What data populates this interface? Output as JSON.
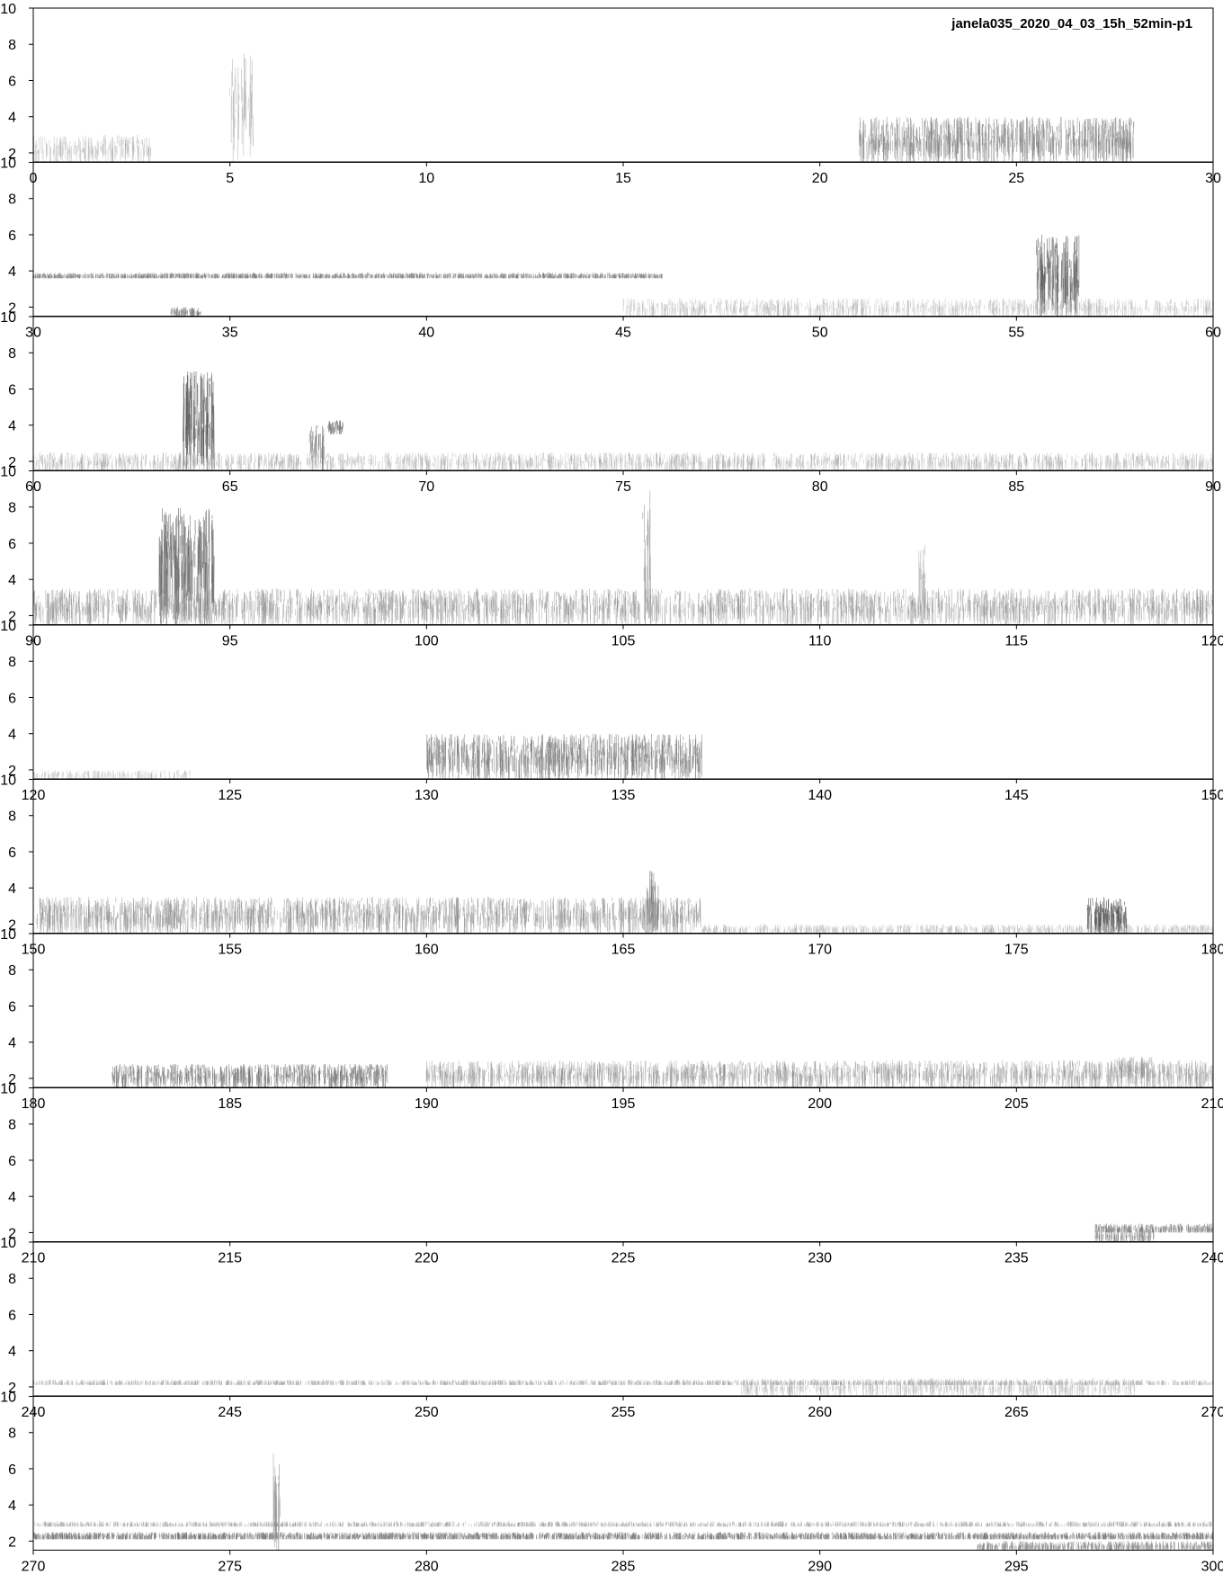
{
  "title": "janela035_2020_04_03_15h_52min-p1",
  "chart_data": {
    "type": "heatmap",
    "subtype": "spectrogram",
    "title": "janela035_2020_04_03_15h_52min-p1",
    "xlabel": "",
    "ylabel": "",
    "colormap": "grayscale (white = low, dark gray = high)",
    "panel_count": 10,
    "panels": [
      {
        "xlim": [
          0,
          30
        ],
        "ylim": [
          1.5,
          10
        ],
        "x_ticks": [
          "0",
          "5",
          "10",
          "15",
          "20",
          "25",
          "30"
        ],
        "y_ticks": [
          "2",
          "4",
          "6",
          "8",
          "10"
        ],
        "events": [
          {
            "t0": 0,
            "t1": 3,
            "f0": 1.5,
            "f1": 3,
            "intensity": 0.25
          },
          {
            "t0": 5,
            "t1": 5.6,
            "f0": 1.5,
            "f1": 7.5,
            "intensity": 0.3
          },
          {
            "t0": 21,
            "t1": 28,
            "f0": 1.5,
            "f1": 4,
            "intensity": 0.55
          }
        ]
      },
      {
        "xlim": [
          30,
          60
        ],
        "ylim": [
          1.5,
          10
        ],
        "x_ticks": [
          "30",
          "35",
          "40",
          "45",
          "50",
          "55",
          "60"
        ],
        "y_ticks": [
          "2",
          "4",
          "6",
          "8",
          "10"
        ],
        "events": [
          {
            "t0": 30,
            "t1": 46,
            "f0": 3.6,
            "f1": 3.9,
            "intensity": 0.55
          },
          {
            "t0": 33.5,
            "t1": 34.3,
            "f0": 1.5,
            "f1": 2,
            "intensity": 0.6
          },
          {
            "t0": 55.5,
            "t1": 56.6,
            "f0": 1.5,
            "f1": 6,
            "intensity": 0.8
          },
          {
            "t0": 45,
            "t1": 60,
            "f0": 1.5,
            "f1": 2.5,
            "intensity": 0.2
          }
        ]
      },
      {
        "xlim": [
          60,
          90
        ],
        "ylim": [
          1.5,
          10
        ],
        "x_ticks": [
          "60",
          "65",
          "70",
          "75",
          "80",
          "85",
          "90"
        ],
        "y_ticks": [
          "2",
          "4",
          "6",
          "8",
          "10"
        ],
        "events": [
          {
            "t0": 63.8,
            "t1": 64.6,
            "f0": 1.5,
            "f1": 7,
            "intensity": 0.85
          },
          {
            "t0": 67,
            "t1": 67.4,
            "f0": 1.5,
            "f1": 4,
            "intensity": 0.6
          },
          {
            "t0": 67.5,
            "t1": 67.9,
            "f0": 3.5,
            "f1": 4.3,
            "intensity": 0.7
          },
          {
            "t0": 60,
            "t1": 90,
            "f0": 1.5,
            "f1": 2.5,
            "intensity": 0.25
          }
        ]
      },
      {
        "xlim": [
          90,
          120
        ],
        "ylim": [
          1.5,
          10
        ],
        "x_ticks": [
          "90",
          "95",
          "100",
          "105",
          "110",
          "115",
          "120"
        ],
        "y_ticks": [
          "2",
          "4",
          "6",
          "8",
          "10"
        ],
        "events": [
          {
            "t0": 93.2,
            "t1": 94.6,
            "f0": 1.5,
            "f1": 8,
            "intensity": 0.75
          },
          {
            "t0": 105.5,
            "t1": 105.7,
            "f0": 1.5,
            "f1": 9,
            "intensity": 0.5
          },
          {
            "t0": 112.5,
            "t1": 112.7,
            "f0": 1.5,
            "f1": 6,
            "intensity": 0.4
          },
          {
            "t0": 90,
            "t1": 120,
            "f0": 1.5,
            "f1": 3.5,
            "intensity": 0.4
          }
        ]
      },
      {
        "xlim": [
          120,
          150
        ],
        "ylim": [
          1.5,
          10
        ],
        "x_ticks": [
          "120",
          "125",
          "130",
          "135",
          "140",
          "145",
          "150"
        ],
        "y_ticks": [
          "2",
          "4",
          "6",
          "8",
          "10"
        ],
        "events": [
          {
            "t0": 130,
            "t1": 137,
            "f0": 1.5,
            "f1": 4,
            "intensity": 0.6
          },
          {
            "t0": 120,
            "t1": 124,
            "f0": 1.5,
            "f1": 2,
            "intensity": 0.15
          }
        ]
      },
      {
        "xlim": [
          150,
          180
        ],
        "ylim": [
          1.5,
          10
        ],
        "x_ticks": [
          "150",
          "155",
          "160",
          "165",
          "170",
          "175",
          "180"
        ],
        "y_ticks": [
          "2",
          "4",
          "6",
          "8",
          "10"
        ],
        "events": [
          {
            "t0": 150,
            "t1": 167,
            "f0": 1.5,
            "f1": 3.5,
            "intensity": 0.45
          },
          {
            "t0": 165.6,
            "t1": 165.9,
            "f0": 1.5,
            "f1": 5,
            "intensity": 0.6
          },
          {
            "t0": 176.8,
            "t1": 177.8,
            "f0": 1.5,
            "f1": 3.5,
            "intensity": 0.85
          },
          {
            "t0": 167,
            "t1": 180,
            "f0": 1.5,
            "f1": 2,
            "intensity": 0.2
          }
        ]
      },
      {
        "xlim": [
          180,
          210
        ],
        "ylim": [
          1.5,
          10
        ],
        "x_ticks": [
          "180",
          "185",
          "190",
          "195",
          "200",
          "205",
          "210"
        ],
        "y_ticks": [
          "2",
          "4",
          "6",
          "8",
          "10"
        ],
        "events": [
          {
            "t0": 182,
            "t1": 189,
            "f0": 1.5,
            "f1": 2.8,
            "intensity": 0.6
          },
          {
            "t0": 190,
            "t1": 210,
            "f0": 1.5,
            "f1": 3,
            "intensity": 0.4
          },
          {
            "t0": 207.5,
            "t1": 208.5,
            "f0": 2,
            "f1": 3.2,
            "intensity": 0.4
          }
        ]
      },
      {
        "xlim": [
          210,
          240
        ],
        "ylim": [
          1.5,
          10
        ],
        "x_ticks": [
          "210",
          "215",
          "220",
          "225",
          "230",
          "235",
          "240"
        ],
        "y_ticks": [
          "2",
          "4",
          "6",
          "8",
          "10"
        ],
        "events": [
          {
            "t0": 237,
            "t1": 240,
            "f0": 2,
            "f1": 2.5,
            "intensity": 0.55
          },
          {
            "t0": 237,
            "t1": 238.5,
            "f0": 1.5,
            "f1": 2.2,
            "intensity": 0.5
          }
        ]
      },
      {
        "xlim": [
          240,
          270
        ],
        "ylim": [
          1.5,
          10
        ],
        "x_ticks": [
          "240",
          "245",
          "250",
          "255",
          "260",
          "265",
          "270"
        ],
        "y_ticks": [
          "2",
          "4",
          "6",
          "8",
          "10"
        ],
        "events": [
          {
            "t0": 240,
            "t1": 270,
            "f0": 2.1,
            "f1": 2.4,
            "intensity": 0.3
          },
          {
            "t0": 258,
            "t1": 268,
            "f0": 1.5,
            "f1": 2.5,
            "intensity": 0.2
          }
        ]
      },
      {
        "xlim": [
          270,
          300
        ],
        "ylim": [
          1.5,
          10
        ],
        "x_ticks": [
          "270",
          "275",
          "280",
          "285",
          "290",
          "295",
          "300"
        ],
        "y_ticks": [
          "2",
          "4",
          "6",
          "8",
          "10"
        ],
        "events": [
          {
            "t0": 270,
            "t1": 300,
            "f0": 2.1,
            "f1": 2.5,
            "intensity": 0.6
          },
          {
            "t0": 270,
            "t1": 300,
            "f0": 2.8,
            "f1": 3.1,
            "intensity": 0.3
          },
          {
            "t0": 276.1,
            "t1": 276.3,
            "f0": 1.5,
            "f1": 7,
            "intensity": 0.5
          },
          {
            "t0": 294,
            "t1": 300,
            "f0": 1.5,
            "f1": 2,
            "intensity": 0.5
          }
        ]
      }
    ]
  }
}
